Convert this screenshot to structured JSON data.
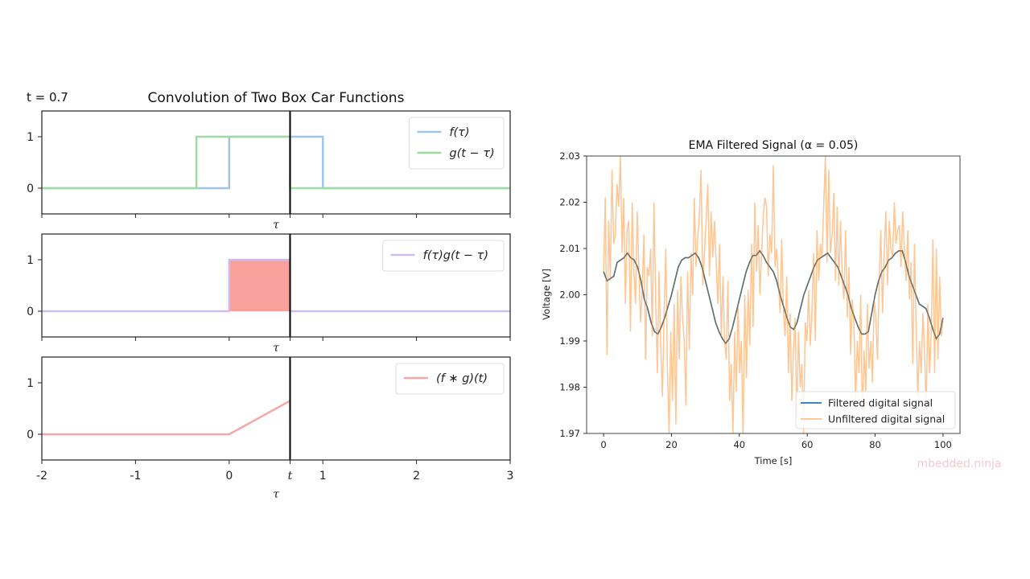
{
  "chart_data": [
    {
      "type": "line",
      "title": "Convolution of Two Box Car Functions",
      "annotation": "t = 0.7",
      "t_value": 0.7,
      "t_marker_position": 0.65,
      "xlim": [
        -2,
        3
      ],
      "ylim": [
        -0.5,
        1.5
      ],
      "xticks": [
        "-2",
        "-1",
        "0",
        "t",
        "1",
        "2",
        "3"
      ],
      "xtick_values": [
        -2,
        -1,
        0,
        0.65,
        1,
        2,
        3
      ],
      "yticks": [
        "0",
        "1"
      ],
      "xlabel": "τ",
      "panels": [
        {
          "name": "boxcars",
          "series": [
            {
              "name": "f(τ)",
              "label_main": "f(τ)",
              "color": "#9ec5ea",
              "x": [
                -2,
                0,
                0,
                1,
                1,
                3
              ],
              "y": [
                0,
                0,
                1,
                1,
                0,
                0
              ]
            },
            {
              "name": "g(t−τ)",
              "label_main": "g(t − τ)",
              "color": "#9ddba0",
              "x": [
                -2,
                -0.35,
                -0.35,
                0.65,
                0.65,
                3
              ],
              "y": [
                0,
                0,
                1,
                1,
                0,
                0
              ]
            }
          ],
          "legend": "top-right"
        },
        {
          "name": "product",
          "series": [
            {
              "name": "f(τ)g(t−τ)",
              "label_main": "f(τ)g(t − τ)",
              "color": "#cbbdf0",
              "x": [
                -2,
                0,
                0,
                0.65,
                0.65,
                3
              ],
              "y": [
                0,
                0,
                1,
                1,
                0,
                0
              ]
            }
          ],
          "fill": {
            "x": [
              0,
              0.65
            ],
            "y": 1,
            "color": "#f8a19c"
          },
          "legend": "top-right"
        },
        {
          "name": "convolution",
          "series": [
            {
              "name": "(f∗g)(t)",
              "label_main": "(f ∗ g)(t)",
              "color": "#f4a9a8",
              "x": [
                -2,
                0,
                0.65
              ],
              "y": [
                0,
                0,
                0.65
              ]
            }
          ],
          "legend": "top-right"
        }
      ]
    },
    {
      "type": "line",
      "title": "EMA Filtered Signal (α = 0.05)",
      "xlabel": "Time [s]",
      "ylabel": "Voltage [V]",
      "xlim": [
        -5,
        105
      ],
      "ylim": [
        1.97,
        2.03
      ],
      "xticks": [
        "0",
        "20",
        "40",
        "60",
        "80",
        "100"
      ],
      "xtick_values": [
        0,
        20,
        40,
        60,
        80,
        100
      ],
      "yticks": [
        "1.97",
        "1.98",
        "1.99",
        "2.00",
        "2.01",
        "2.02",
        "2.03"
      ],
      "ytick_values": [
        1.97,
        1.98,
        1.99,
        2.0,
        2.01,
        2.02,
        2.03
      ],
      "legend": "bottom-right",
      "series": [
        {
          "name": "Filtered digital signal",
          "color": "#1f77b4",
          "x": [
            0,
            1,
            2,
            3,
            4,
            5,
            6,
            7,
            8,
            9,
            10,
            11,
            12,
            13,
            14,
            15,
            16,
            17,
            18,
            19,
            20,
            21,
            22,
            23,
            24,
            25,
            26,
            27,
            28,
            29,
            30,
            31,
            32,
            33,
            34,
            35,
            36,
            37,
            38,
            39,
            40,
            41,
            42,
            43,
            44,
            45,
            46,
            47,
            48,
            49,
            50,
            51,
            52,
            53,
            54,
            55,
            56,
            57,
            58,
            59,
            60,
            61,
            62,
            63,
            64,
            65,
            66,
            67,
            68,
            69,
            70,
            71,
            72,
            73,
            74,
            75,
            76,
            77,
            78,
            79,
            80,
            81,
            82,
            83,
            84,
            85,
            86,
            87,
            88,
            89,
            90,
            91,
            92,
            93,
            94,
            95,
            96,
            97,
            98,
            99,
            100
          ],
          "y": [
            2.005,
            2.003,
            2.0035,
            2.004,
            2.007,
            2.0075,
            2.008,
            2.009,
            2.008,
            2.0075,
            2.006,
            2.003,
            1.999,
            1.997,
            1.994,
            1.992,
            1.9915,
            1.993,
            1.995,
            1.9975,
            2.0,
            2.003,
            2.006,
            2.0075,
            2.008,
            2.008,
            2.0085,
            2.009,
            2.008,
            2.006,
            2.003,
            2.0,
            1.997,
            1.994,
            1.992,
            1.9905,
            1.9895,
            1.9905,
            1.993,
            1.996,
            1.999,
            2.002,
            2.005,
            2.007,
            2.0085,
            2.0085,
            2.0095,
            2.0085,
            2.007,
            2.006,
            2.005,
            2.003,
            2.0,
            1.9975,
            1.995,
            1.993,
            1.9925,
            1.994,
            1.997,
            2.0,
            2.002,
            2.004,
            2.006,
            2.0075,
            2.008,
            2.0085,
            2.009,
            2.008,
            2.007,
            2.006,
            2.004,
            2.002,
            2.0,
            1.997,
            1.995,
            1.993,
            1.9915,
            1.9915,
            1.992,
            1.996,
            2.0,
            2.003,
            2.005,
            2.006,
            2.0075,
            2.008,
            2.009,
            2.0095,
            2.0095,
            2.007,
            2.004,
            2.002,
            2.0,
            1.998,
            1.9975,
            1.997,
            1.995,
            1.9925,
            1.9905,
            1.9915,
            1.995
          ]
        },
        {
          "name": "Unfiltered digital signal",
          "color": "#ffbf86",
          "amplitude": 0.01,
          "period_s": 20,
          "offset": 2.0,
          "samples": [
            2.005,
            2.021,
            1.987,
            2.016,
            2.003,
            2.027,
            2.011,
            2.013,
            2.024,
            2.019,
            2.03,
            2.009,
            2.021,
            1.998,
            2.014,
            2.016,
            1.992,
            2.02,
            2.005,
            1.998,
            2.018,
            2.006,
            1.994,
            2.001,
            2.013,
            1.986,
            2.006,
            2.004,
            2.01,
            1.991,
            2.02,
            1.999,
            1.983,
            2.005,
            1.989,
            1.978,
            1.996,
            2.01,
            1.984,
            1.97,
            1.992,
            1.977,
            1.998,
            1.972,
            2.001,
            1.986,
            2.004,
            1.995,
            1.99,
            1.976,
            2.005,
            1.988,
            2.009,
            2.0,
            2.021,
            2.006,
            2.012,
            2.017,
            2.027,
            2.002,
            2.009,
            2.016,
            2.024,
            2.004,
            2.018,
            2.008,
            2.016,
            2.007,
            1.998,
            2.011,
            1.991,
            2.004,
            1.99,
            1.986,
            2.003,
            1.977,
            1.985,
            1.97,
            1.992,
            1.979,
            1.998,
            1.983,
            1.99,
            1.969,
            2.0,
            1.982,
            2.001,
            1.989,
            2.011,
            1.993,
            2.02,
            2.005,
            2.015,
            2.0,
            2.009,
            2.017,
            2.021,
            2.019,
            2.004,
            2.013,
            2.009,
            2.028,
            2.006,
            2.01,
            2.003,
            1.996,
            2.012,
            1.997,
            1.991,
            2.004,
            1.983,
            1.996,
            1.977,
            1.988,
            1.995,
            1.973,
            1.992,
            1.98,
            1.985,
            1.97,
            1.994,
            1.99,
            2.001,
            1.989,
            1.996,
            2.009,
            1.99,
            2.014,
            2.003,
            2.011,
            2.008,
            2.019,
            2.03,
            2.007,
            2.027,
            2.009,
            2.013,
            2.022,
            2.003,
            2.019,
            2.002,
            2.016,
            2.004,
            1.999,
            2.014,
            1.995,
            2.006,
            1.987,
            1.999,
            1.994,
            1.977,
            1.99,
            1.983,
            2.0,
            1.972,
            1.988,
            1.979,
            1.998,
            1.984,
            1.99,
            1.981,
            1.999,
            1.995,
            1.986,
            2.003,
            2.014,
            1.996,
            2.009,
            2.018,
            2.002,
            2.016,
            2.01,
            2.008,
            2.02,
            2.011,
            2.014,
            2.015,
            2.006,
            2.018,
            2.01,
            2.003,
            2.014,
            1.999,
            2.007,
            1.985,
            2.011,
            1.993,
            1.978,
            1.99,
            1.983,
            1.996,
            1.988,
            1.975,
            1.998,
            1.983,
            1.992,
            2.012,
            1.983,
            2.01,
            1.986,
            2.004,
            1.991,
            1.995
          ]
        }
      ]
    }
  ],
  "watermark": "mbedded.ninja"
}
